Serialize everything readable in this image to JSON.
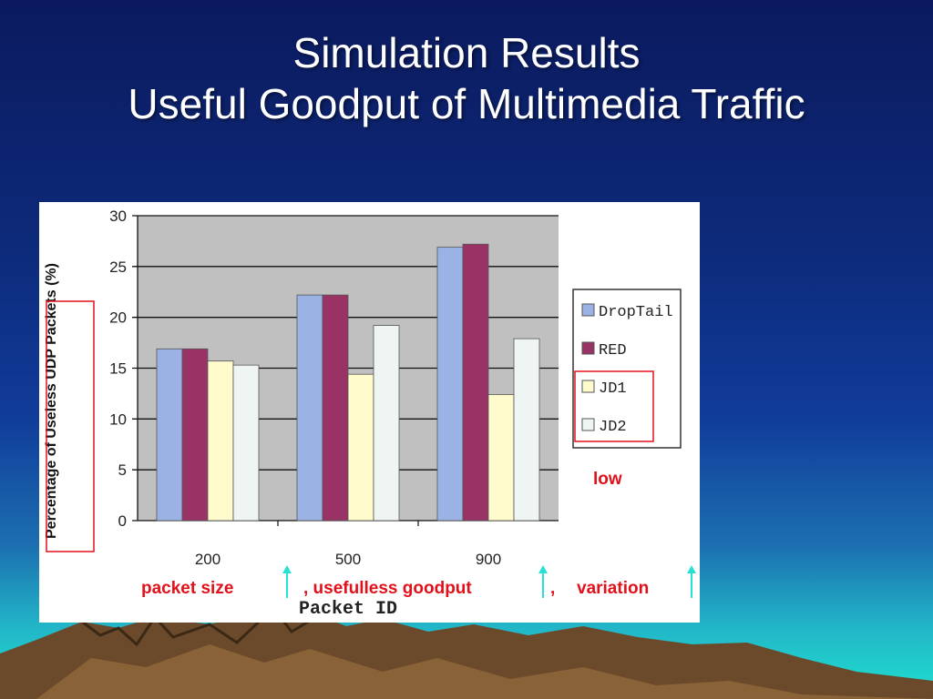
{
  "slide": {
    "title_line1": "Simulation Results",
    "title_line2": "Useful Goodput of Multimedia Traffic"
  },
  "annotations": {
    "low": "low",
    "caption_part1": "packet size",
    "caption_part2": ", usefulless goodput",
    "caption_part3": ",",
    "caption_part4": "variation"
  },
  "colors": {
    "DropTail": "#9ab3e4",
    "RED": "#993366",
    "JD1": "#fffbcc",
    "JD2": "#eef5f2",
    "highlight_box": "#e2101a",
    "up_arrow": "#29e0d4"
  },
  "chart_data": {
    "type": "bar",
    "title": "",
    "xlabel": "Packet ID",
    "ylabel": "Percentage of Useless UDP Packets (%)",
    "categories": [
      "200",
      "500",
      "900"
    ],
    "ylim": [
      0,
      30
    ],
    "yticks": [
      "0",
      "5",
      "10",
      "15",
      "20",
      "25",
      "30"
    ],
    "grid": true,
    "legend_position": "right",
    "series": [
      {
        "name": "DropTail",
        "values": [
          16.9,
          22.2,
          26.9
        ]
      },
      {
        "name": "RED",
        "values": [
          16.9,
          22.2,
          27.2
        ]
      },
      {
        "name": "JD1",
        "values": [
          15.7,
          14.4,
          12.4
        ]
      },
      {
        "name": "JD2",
        "values": [
          15.3,
          19.2,
          17.9
        ]
      }
    ]
  }
}
